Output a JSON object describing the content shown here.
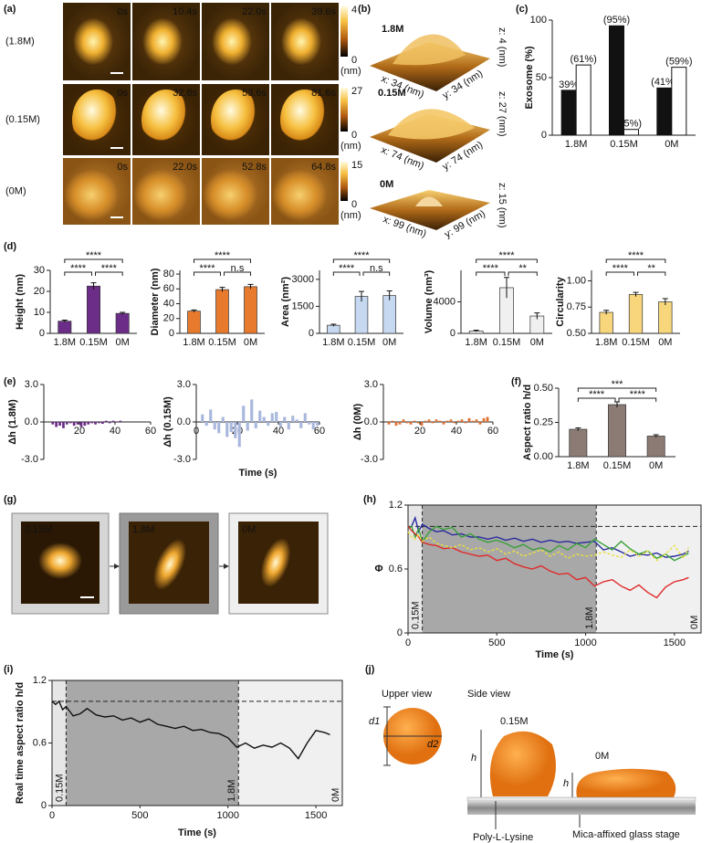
{
  "panel_labels": [
    "(a)",
    "(b)",
    "(c)",
    "(d)",
    "(e)",
    "(f)",
    "(g)",
    "(h)",
    "(i)",
    "(j)"
  ],
  "images_a": {
    "rows": [
      {
        "label": "(1.8M)",
        "times": [
          "0s",
          "10.4s",
          "22.0s",
          "39.6s"
        ],
        "colorbar_max": 4
      },
      {
        "label": "(0.15M)",
        "times": [
          "0s",
          "32.8s",
          "53.6s",
          "81.6s"
        ],
        "colorbar_max": 27
      },
      {
        "label": "(0M)",
        "times": [
          "0s",
          "22.0s",
          "52.8s",
          "64.8s"
        ],
        "colorbar_max": 15
      }
    ],
    "colorbar_min": 0,
    "colorbar_unit": "(nm)"
  },
  "surfaces_b": [
    {
      "label": "1.8M",
      "x_axis": "x: 34 (nm)",
      "y_axis": "y: 34 (nm)",
      "z_axis": "z: 4 (nm)"
    },
    {
      "label": "0.15M",
      "x_axis": "x: 74 (nm)",
      "y_axis": "y: 74 (nm)",
      "z_axis": "z: 27 (nm)"
    },
    {
      "label": "0M",
      "x_axis": "x: 99 (nm)",
      "y_axis": "y: 99 (nm)",
      "z_axis": "z: 15 (nm)"
    }
  ],
  "images_g": {
    "labels": [
      "0.15M",
      "1.8M",
      "0M"
    ]
  },
  "diagram_j": {
    "upper_view": "Upper view",
    "d1": "d1",
    "d2": "d2",
    "side_view": "Side view",
    "label_high": "0.15M",
    "label_low": "0M",
    "h": "h",
    "coating": "Poly-L-Lysine",
    "stage": "Mica-affixed glass stage"
  },
  "chart_data": [
    {
      "type": "bar",
      "ylabel": "Exosome (%)",
      "categories": [
        "1.8M",
        "0.15M",
        "0M"
      ],
      "series": [
        {
          "color": "#111111",
          "values": [
            39,
            95,
            41
          ],
          "value_labels": [
            "39%",
            "(95%)",
            "(41%)"
          ]
        },
        {
          "color": "#ffffff",
          "values": [
            61,
            5,
            59
          ],
          "value_labels": [
            "(61%)",
            "(5%)",
            "(59%)"
          ]
        }
      ],
      "ylim": [
        0,
        100
      ],
      "yticks": [
        0,
        50,
        100
      ]
    },
    {
      "type": "bar",
      "ylabel": "Height (nm)",
      "categories": [
        "1.8M",
        "0.15M",
        "0M"
      ],
      "values": [
        5.8,
        22.5,
        9.5
      ],
      "errors": [
        0.5,
        1.6,
        0.5
      ],
      "color": "#6b2d88",
      "ylim": [
        0,
        30
      ],
      "yticks": [
        0,
        10,
        20,
        30
      ],
      "significance": [
        "****",
        "****",
        "****"
      ]
    },
    {
      "type": "bar",
      "ylabel": "Diameter (nm)",
      "categories": [
        "1.8M",
        "0.15M",
        "0M"
      ],
      "values": [
        30,
        59,
        63
      ],
      "errors": [
        1.5,
        3,
        3
      ],
      "color": "#e87a2e",
      "ylim": [
        0,
        85
      ],
      "yticks": [
        0,
        20,
        40,
        60,
        80
      ],
      "significance": [
        "****",
        "****",
        "n.s"
      ]
    },
    {
      "type": "bar",
      "ylabel": "Area (nm²)",
      "categories": [
        "1.8M",
        "0.15M",
        "0M"
      ],
      "values": [
        450,
        2050,
        2100
      ],
      "errors": [
        60,
        280,
        260
      ],
      "color": "#c6d9f1",
      "ylim": [
        0,
        3500
      ],
      "yticks": [
        0,
        1500,
        3000
      ],
      "significance": [
        "****",
        "****",
        "n.s"
      ]
    },
    {
      "type": "bar",
      "ylabel": "Volume (nm³)",
      "categories": [
        "1.8M",
        "0.15M",
        "0M"
      ],
      "values": [
        300,
        5800,
        2200
      ],
      "errors": [
        100,
        1300,
        400
      ],
      "color": "#f0f0f0",
      "ylim": [
        0,
        8000
      ],
      "yticks": [
        0,
        4000
      ],
      "significance": [
        "****",
        "****",
        "**"
      ]
    },
    {
      "type": "bar",
      "ylabel": "Circularity",
      "categories": [
        "1.8M",
        "0.15M",
        "0M"
      ],
      "values": [
        0.7,
        0.87,
        0.8
      ],
      "errors": [
        0.02,
        0.02,
        0.03
      ],
      "color": "#f8d77c",
      "ylim": [
        0.5,
        1.1
      ],
      "yticks": [
        {
          "value": 0.5,
          "label": "0.50"
        },
        {
          "value": 0.75,
          "label": "0.75"
        },
        {
          "value": 1,
          "label": "1.00"
        }
      ],
      "significance": [
        "****",
        "****",
        "**"
      ]
    },
    {
      "type": "bar",
      "ylabel": "Δh (1.8M)",
      "x": [
        5,
        7,
        9,
        11,
        13,
        15,
        17,
        19,
        21,
        23,
        25,
        27,
        29,
        31,
        33,
        35,
        37,
        39,
        41,
        43
      ],
      "values": [
        -0.2,
        -0.4,
        -0.3,
        -0.5,
        -0.2,
        -0.1,
        -0.3,
        -0.2,
        -0.4,
        -0.3,
        -0.2,
        -0.1,
        -0.2,
        -0.1,
        -0.15,
        0.1,
        -0.1,
        0.1,
        -0.05,
        0.1
      ],
      "color": "#6b2d88",
      "xlim": [
        0,
        60
      ],
      "xticks": [
        20,
        40,
        60
      ],
      "ylim": [
        -3,
        3
      ],
      "yticks": [
        {
          "value": -3,
          "label": "-3.0"
        },
        {
          "value": 0,
          "label": "0.0"
        },
        {
          "value": 3,
          "label": "3.0"
        }
      ]
    },
    {
      "type": "bar",
      "ylabel": "Δh (0.15M)",
      "xlabel": "Time (s)",
      "x": [
        3,
        5,
        7,
        9,
        11,
        13,
        15,
        17,
        19,
        21,
        23,
        25,
        27,
        29,
        31,
        33,
        35,
        37,
        39,
        41,
        43,
        45,
        47,
        49,
        51,
        53,
        55,
        57,
        59
      ],
      "values": [
        0.6,
        -0.3,
        1.0,
        -0.6,
        -0.9,
        0.4,
        -1.2,
        -0.8,
        -1.3,
        -2.0,
        1.3,
        -0.7,
        1.8,
        -0.5,
        0.9,
        0.4,
        -0.3,
        0.7,
        0.8,
        -0.4,
        0.4,
        -0.6,
        0.5,
        0.2,
        -0.5,
        0.7,
        -0.2,
        -0.6,
        -0.3
      ],
      "color": "#a9b7dd",
      "xlim": [
        0,
        60
      ],
      "xticks": [
        0,
        20,
        40,
        60
      ],
      "ylim": [
        -3,
        3
      ],
      "yticks": [
        {
          "value": -3,
          "label": "-3.0"
        },
        {
          "value": 0,
          "label": "0.0"
        },
        {
          "value": 3,
          "label": "3.0"
        }
      ]
    },
    {
      "type": "bar",
      "ylabel": "Δh (0M)",
      "x": [
        3,
        5,
        7,
        9,
        11,
        13,
        15,
        17,
        19,
        21,
        23,
        25,
        27,
        29,
        31,
        33,
        35,
        37,
        39,
        41,
        43,
        45,
        47,
        49,
        51,
        53,
        55,
        57
      ],
      "values": [
        -0.2,
        0.1,
        -0.3,
        -0.2,
        0.2,
        -0.1,
        -0.2,
        0.1,
        -0.1,
        -0.3,
        0.1,
        0.2,
        -0.1,
        0.2,
        0.1,
        -0.2,
        0.1,
        0.2,
        -0.1,
        0.1,
        0.2,
        -0.1,
        0.3,
        0.1,
        0.2,
        -0.2,
        0.3,
        0.4
      ],
      "color": "#e07030",
      "xlim": [
        0,
        60
      ],
      "xticks": [
        20,
        40,
        60
      ],
      "ylim": [
        -3,
        3
      ],
      "yticks": [
        {
          "value": -3,
          "label": "-3.0"
        },
        {
          "value": 0,
          "label": "0.0"
        },
        {
          "value": 3,
          "label": "3.0"
        }
      ]
    },
    {
      "type": "bar",
      "ylabel": "Aspect ratio h/d",
      "categories": [
        "1.8M",
        "0.15M",
        "0M"
      ],
      "values": [
        0.2,
        0.38,
        0.15
      ],
      "errors": [
        0.01,
        0.02,
        0.01
      ],
      "color": "#8b7b74",
      "ylim": [
        0,
        0.5
      ],
      "yticks": [
        {
          "value": 0,
          "label": "0.00"
        },
        {
          "value": 0.25,
          "label": "0.25"
        },
        {
          "value": 0.5,
          "label": "0.50"
        }
      ],
      "significance": [
        "***",
        "****",
        "****"
      ]
    },
    {
      "type": "line",
      "ylabel": "Φ",
      "xlabel": "Time (s)",
      "x": [
        0,
        20,
        40,
        60,
        80,
        120,
        160,
        200,
        250,
        300,
        350,
        400,
        450,
        500,
        550,
        600,
        650,
        700,
        750,
        800,
        850,
        900,
        950,
        1000,
        1050,
        1100,
        1150,
        1200,
        1250,
        1300,
        1350,
        1400,
        1450,
        1500,
        1550,
        1580
      ],
      "series": [
        {
          "color": "#2a2aa0",
          "values": [
            0.98,
            1.0,
            1.08,
            0.95,
            1.02,
            0.98,
            0.95,
            0.96,
            0.92,
            0.93,
            0.9,
            0.9,
            0.88,
            0.9,
            0.87,
            0.89,
            0.86,
            0.88,
            0.85,
            0.87,
            0.85,
            0.86,
            0.84,
            0.85,
            0.86,
            0.78,
            0.8,
            0.76,
            0.72,
            0.74,
            0.73,
            0.75,
            0.71,
            0.72,
            0.74,
            0.77
          ]
        },
        {
          "color": "#3aa03a",
          "values": [
            0.98,
            1.0,
            0.9,
            0.98,
            0.85,
            0.95,
            1.0,
            0.97,
            0.99,
            0.9,
            0.93,
            0.88,
            0.85,
            0.87,
            0.84,
            0.8,
            0.83,
            0.78,
            0.8,
            0.76,
            0.82,
            0.78,
            0.84,
            0.8,
            0.88,
            0.83,
            0.78,
            0.86,
            0.79,
            0.74,
            0.77,
            0.7,
            0.74,
            0.68,
            0.72,
            0.75
          ]
        },
        {
          "color": "#e02a2a",
          "values": [
            1.0,
            0.96,
            0.93,
            0.9,
            0.85,
            0.83,
            0.82,
            0.79,
            0.8,
            0.76,
            0.74,
            0.72,
            0.73,
            0.68,
            0.7,
            0.65,
            0.62,
            0.6,
            0.63,
            0.58,
            0.55,
            0.56,
            0.5,
            0.52,
            0.44,
            0.48,
            0.5,
            0.44,
            0.4,
            0.45,
            0.38,
            0.33,
            0.43,
            0.48,
            0.5,
            0.52
          ]
        },
        {
          "color": "#e8e040",
          "dash": true,
          "values": [
            0.95,
            0.9,
            0.88,
            0.92,
            0.86,
            0.9,
            0.84,
            0.82,
            0.8,
            0.83,
            0.78,
            0.8,
            0.76,
            0.79,
            0.74,
            0.77,
            0.72,
            0.75,
            0.78,
            0.72,
            0.76,
            0.7,
            0.74,
            0.72,
            0.73,
            0.76,
            0.73,
            0.71,
            0.78,
            0.72,
            0.77,
            0.68,
            0.74,
            0.82,
            0.7,
            0.8
          ]
        }
      ],
      "xlim": [
        0,
        1650
      ],
      "xticks": [
        0,
        500,
        1000,
        1500
      ],
      "ylim": [
        0,
        1.2
      ],
      "yticks": [
        0,
        0.6,
        1.2
      ],
      "reference_line": 1,
      "phases": [
        {
          "label": "0.15M",
          "xlim": [
            0,
            80
          ],
          "color": "#e6e6e6"
        },
        {
          "label": "1.8M",
          "xlim": [
            80,
            1060
          ],
          "color": "#a8a8a8"
        },
        {
          "label": "0M",
          "xlim": [
            1060,
            1650
          ],
          "color": "#f0f0f0"
        }
      ]
    },
    {
      "type": "line",
      "ylabel": "Real time aspect ratio h/d",
      "xlabel": "Time (s)",
      "x": [
        0,
        20,
        40,
        60,
        80,
        120,
        160,
        200,
        250,
        300,
        350,
        400,
        450,
        500,
        550,
        600,
        650,
        700,
        750,
        800,
        850,
        900,
        950,
        1000,
        1050,
        1100,
        1150,
        1200,
        1250,
        1300,
        1350,
        1400,
        1450,
        1500,
        1550,
        1580
      ],
      "series": [
        {
          "color": "#111111",
          "values": [
            1.0,
            0.97,
            1.0,
            0.92,
            0.95,
            0.86,
            0.88,
            0.93,
            0.87,
            0.85,
            0.86,
            0.82,
            0.84,
            0.8,
            0.83,
            0.78,
            0.76,
            0.74,
            0.76,
            0.72,
            0.73,
            0.7,
            0.69,
            0.65,
            0.56,
            0.6,
            0.55,
            0.58,
            0.56,
            0.6,
            0.55,
            0.45,
            0.6,
            0.72,
            0.7,
            0.68
          ]
        }
      ],
      "xlim": [
        0,
        1650
      ],
      "xticks": [
        0,
        500,
        1000,
        1500
      ],
      "ylim": [
        0,
        1.2
      ],
      "yticks": [
        0,
        0.6,
        1.2
      ],
      "reference_line": 1,
      "phases": [
        {
          "label": "0.15M",
          "xlim": [
            0,
            80
          ],
          "color": "#e6e6e6"
        },
        {
          "label": "1.8M",
          "xlim": [
            80,
            1060
          ],
          "color": "#a8a8a8"
        },
        {
          "label": "0M",
          "xlim": [
            1060,
            1650
          ],
          "color": "#f0f0f0"
        }
      ]
    }
  ]
}
